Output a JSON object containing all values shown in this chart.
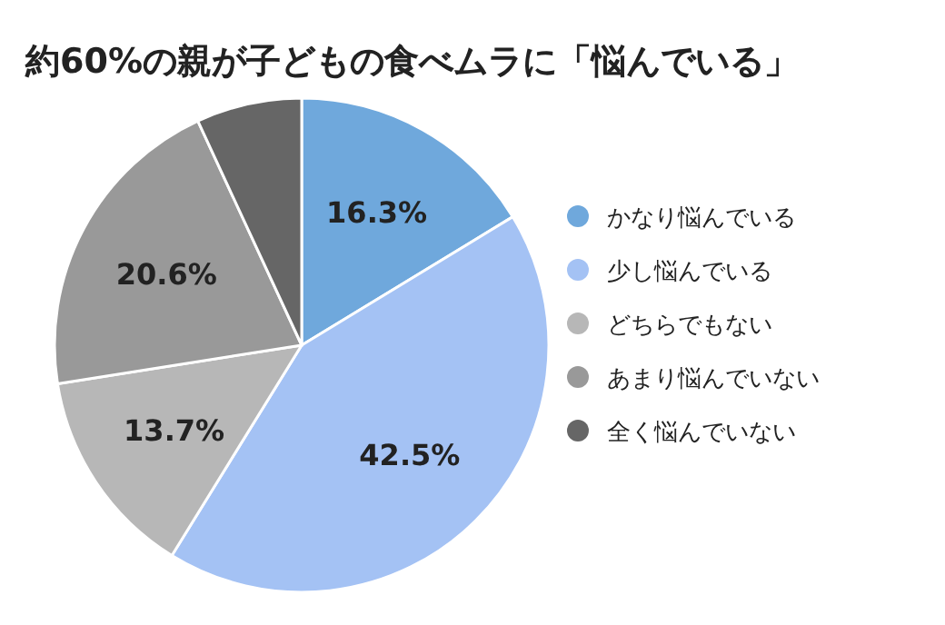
{
  "chart_data": {
    "type": "pie",
    "title": "約60%の親が子どもの食べムラに「悩んでいる」",
    "categories": [
      "かなり悩んでいる",
      "少し悩んでいる",
      "どちらでもない",
      "あまり悩んでいない",
      "全く悩んでいない"
    ],
    "values": [
      16.3,
      42.5,
      13.7,
      20.6,
      6.9
    ],
    "colors": [
      "#6fa8dc",
      "#a4c2f4",
      "#b7b7b7",
      "#999999",
      "#666666"
    ],
    "value_labels": [
      "16.3%",
      "42.5%",
      "13.7%",
      "20.6%",
      null
    ],
    "legend": "right"
  }
}
